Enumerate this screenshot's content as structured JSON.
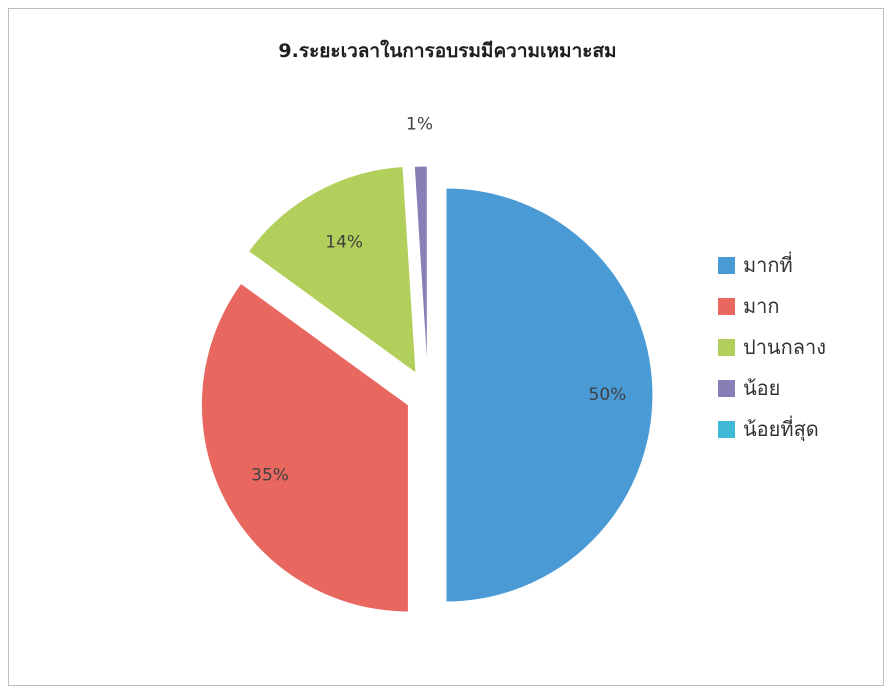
{
  "chart_data": {
    "type": "pie",
    "title": "9.ระยะเวลาในการอบรมมีความเหมาะสม",
    "categories": [
      "มากที่",
      "มาก",
      "ปานกลาง",
      "น้อย",
      "น้อยที่สุด"
    ],
    "values": [
      50,
      35,
      14,
      1,
      0
    ],
    "labels": [
      "50%",
      "35%",
      "14%",
      "1%",
      ""
    ],
    "colors": [
      "#4a9bd5",
      "#e8685f",
      "#b3cf5b",
      "#8a7eb6",
      "#40b9d6"
    ],
    "exploded": true,
    "legend": "right"
  }
}
